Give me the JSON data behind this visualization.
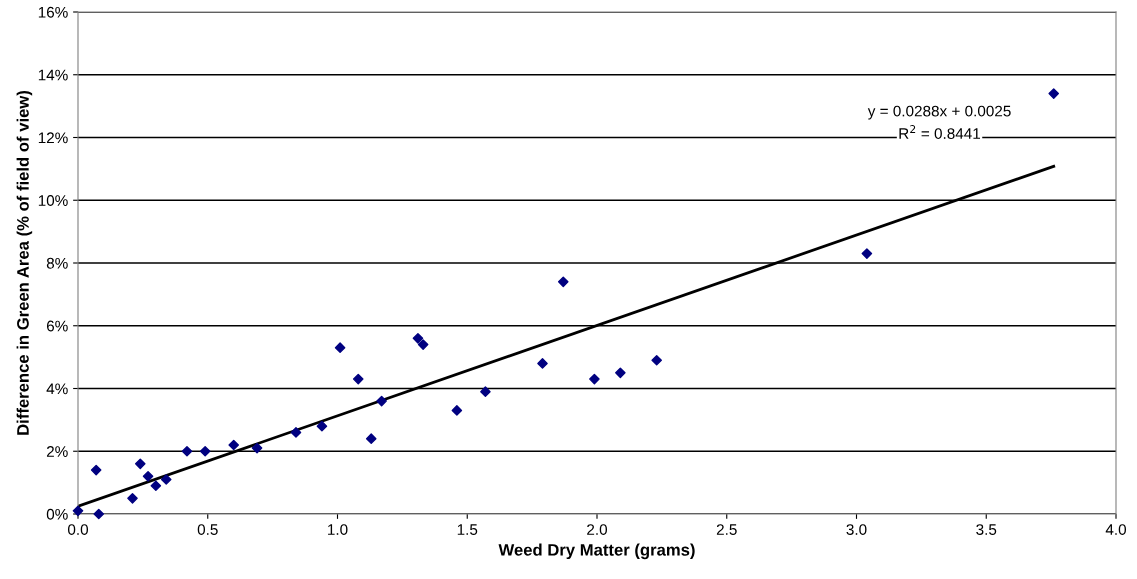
{
  "chart_data": {
    "type": "scatter",
    "xlabel": "Weed Dry Matter (grams)",
    "ylabel": "Difference in Green Area (% of field of view)",
    "xlim": [
      0,
      4
    ],
    "xticks": [
      {
        "value": 0,
        "label": "0.0"
      },
      {
        "value": 0.5,
        "label": "0.5"
      },
      {
        "value": 1,
        "label": "1.0"
      },
      {
        "value": 1.5,
        "label": "1.5"
      },
      {
        "value": 2,
        "label": "2.0"
      },
      {
        "value": 2.5,
        "label": "2.5"
      },
      {
        "value": 3,
        "label": "3.0"
      },
      {
        "value": 3.5,
        "label": "3.5"
      },
      {
        "value": 4,
        "label": "4.0"
      }
    ],
    "ylim": [
      0,
      16
    ],
    "yticks": [
      {
        "value": 0,
        "label": "0%"
      },
      {
        "value": 2,
        "label": "2%"
      },
      {
        "value": 4,
        "label": "4%"
      },
      {
        "value": 6,
        "label": "6%"
      },
      {
        "value": 8,
        "label": "8%"
      },
      {
        "value": 10,
        "label": "10%"
      },
      {
        "value": 12,
        "label": "12%"
      },
      {
        "value": 14,
        "label": "14%"
      },
      {
        "value": 16,
        "label": "16%"
      }
    ],
    "grid": "y",
    "legend": false,
    "marker": "diamond",
    "series": [
      {
        "color": "#000080",
        "x": [
          0.0,
          0.07,
          0.08,
          0.21,
          0.24,
          0.27,
          0.3,
          0.34,
          0.42,
          0.49,
          0.6,
          0.69,
          0.84,
          0.94,
          1.01,
          1.08,
          1.13,
          1.17,
          1.31,
          1.33,
          1.46,
          1.57,
          1.79,
          1.87,
          1.99,
          2.09,
          2.23,
          3.04,
          3.76
        ],
        "values": [
          0.1,
          1.4,
          0.0,
          0.5,
          1.6,
          1.2,
          0.9,
          1.1,
          2.0,
          2.0,
          2.2,
          2.1,
          2.6,
          2.8,
          5.3,
          4.3,
          2.4,
          3.6,
          5.6,
          5.4,
          3.3,
          3.9,
          4.8,
          7.4,
          4.3,
          4.5,
          4.9,
          8.3,
          13.4
        ]
      },
      {
        "type": "line",
        "color": "#000000",
        "x": [
          0.0,
          3.76
        ],
        "values": [
          0.25,
          11.08
        ],
        "marker": "none",
        "line_style": "solid"
      }
    ],
    "annotations": [
      "y = 0.0288x + 0.0025",
      "R$^{2}$ = 0.8441"
    ]
  }
}
